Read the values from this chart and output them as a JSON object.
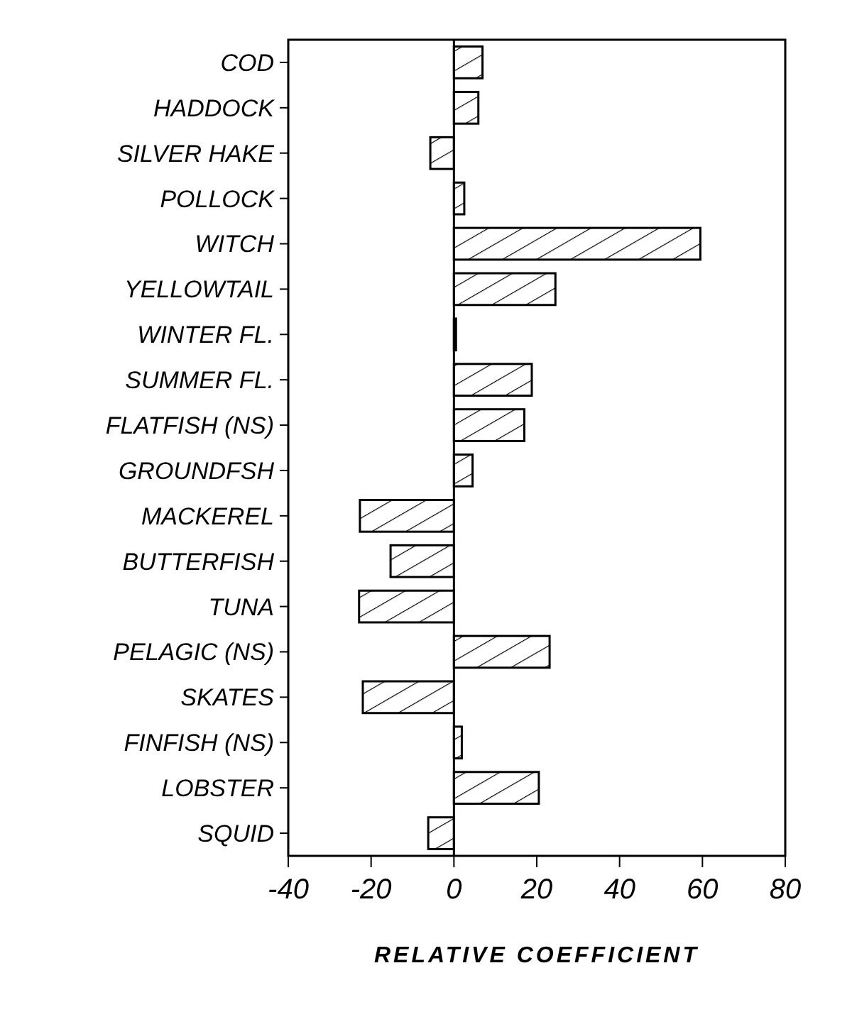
{
  "chart_data": {
    "type": "bar",
    "orientation": "horizontal",
    "xlabel": "RELATIVE COEFFICIENT",
    "categories": [
      "COD",
      "HADDOCK",
      "SILVER HAKE",
      "POLLOCK",
      "WITCH",
      "YELLOWTAIL",
      "WINTER FL.",
      "SUMMER FL.",
      "FLATFISH (NS)",
      "GROUNDFSH",
      "MACKEREL",
      "BUTTERFISH",
      "TUNA",
      "PELAGIC (NS)",
      "SKATES",
      "FINFISH (NS)",
      "LOBSTER",
      "SQUID"
    ],
    "values": [
      6.9,
      5.9,
      -5.7,
      2.5,
      59.5,
      24.5,
      0.5,
      18.8,
      17,
      4.5,
      -22.7,
      -15.3,
      -22.9,
      23.1,
      -22,
      1.9,
      20.5,
      -6.2
    ],
    "color": "#000000",
    "xlim": [
      -40,
      80
    ],
    "xticks": [
      -40,
      -20,
      0,
      20,
      40,
      60,
      80
    ]
  }
}
